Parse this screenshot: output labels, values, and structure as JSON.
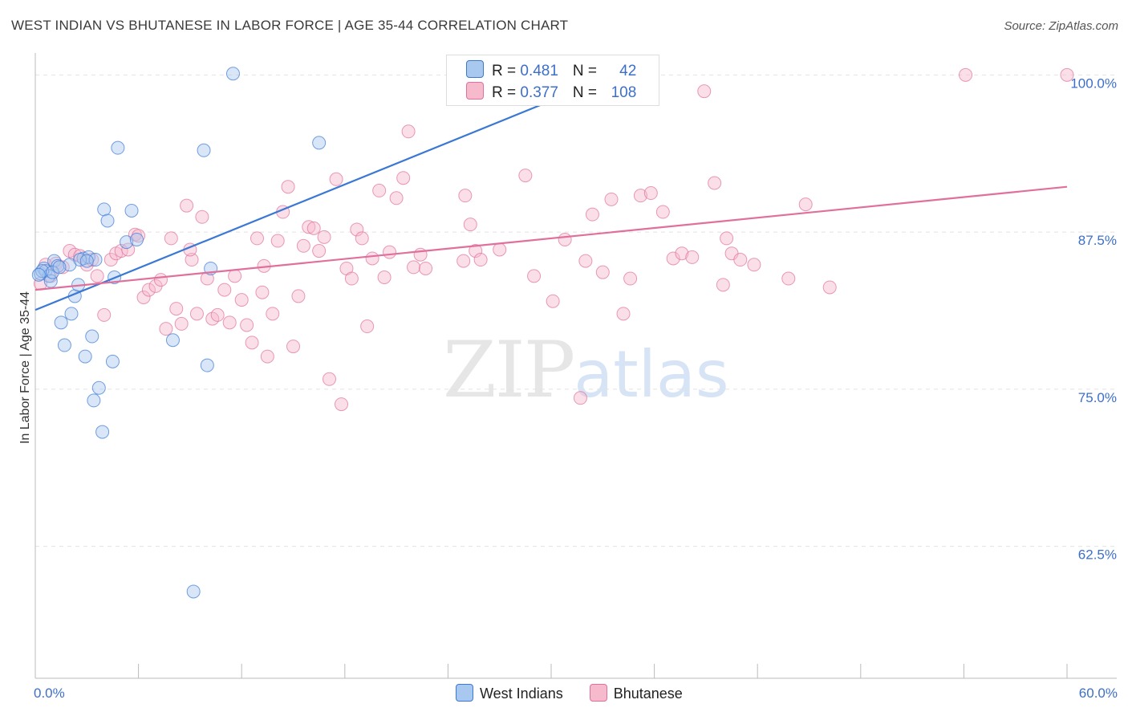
{
  "header": {
    "title": "WEST INDIAN VS BHUTANESE IN LABOR FORCE | AGE 35-44 CORRELATION CHART",
    "source": "Source: ZipAtlas.com"
  },
  "watermark": {
    "zip": "ZIP",
    "atlas": "atlas"
  },
  "legend": {
    "series1": {
      "r_label": "R = ",
      "r_value": "0.481",
      "n_label": "N = ",
      "n_value": "42"
    },
    "series2": {
      "r_label": "R = ",
      "r_value": "0.377",
      "n_label": "N = ",
      "n_value": "108"
    }
  },
  "colors": {
    "blue": "#3a78d4",
    "pink": "#e0709b",
    "blue_fill": "#a9c8f0",
    "pink_fill": "#f7b9cc",
    "tick": "#3d6fc9"
  },
  "chart_data": {
    "type": "scatter",
    "title": "WEST INDIAN VS BHUTANESE IN LABOR FORCE | AGE 35-44 CORRELATION CHART",
    "xlabel": "",
    "ylabel": "In Labor Force | Age 35-44",
    "xlim": [
      0,
      60
    ],
    "ylim": [
      52,
      102
    ],
    "x_tick_labels": [
      "0.0%",
      "60.0%"
    ],
    "y_ticks": [
      62.5,
      75.0,
      87.5,
      100.0
    ],
    "y_tick_labels": [
      "62.5%",
      "75.0%",
      "87.5%",
      "100.0%"
    ],
    "series": [
      {
        "name": "West Indians",
        "color": "#3a78d4",
        "trend": {
          "x": [
            0,
            33.7
          ],
          "y": [
            81.3,
            100.0
          ]
        },
        "points": [
          [
            0.3,
            84.2
          ],
          [
            0.5,
            84.6
          ],
          [
            0.6,
            84.4
          ],
          [
            0.8,
            84.0
          ],
          [
            0.9,
            83.6
          ],
          [
            1.1,
            85.2
          ],
          [
            1.3,
            84.8
          ],
          [
            1.5,
            80.3
          ],
          [
            1.7,
            78.5
          ],
          [
            2.0,
            84.9
          ],
          [
            2.1,
            81.0
          ],
          [
            2.3,
            82.4
          ],
          [
            2.5,
            83.3
          ],
          [
            2.8,
            85.4
          ],
          [
            2.9,
            77.6
          ],
          [
            3.1,
            85.5
          ],
          [
            3.3,
            79.2
          ],
          [
            3.4,
            74.1
          ],
          [
            3.5,
            85.3
          ],
          [
            3.7,
            75.1
          ],
          [
            3.9,
            71.6
          ],
          [
            4.0,
            89.3
          ],
          [
            4.2,
            88.4
          ],
          [
            4.5,
            77.2
          ],
          [
            4.6,
            83.9
          ],
          [
            4.8,
            94.2
          ],
          [
            5.3,
            86.7
          ],
          [
            5.6,
            89.2
          ],
          [
            5.9,
            86.9
          ],
          [
            8.0,
            78.9
          ],
          [
            9.2,
            58.9
          ],
          [
            9.8,
            94.0
          ],
          [
            10.0,
            76.9
          ],
          [
            10.2,
            84.6
          ],
          [
            11.5,
            100.1
          ],
          [
            16.5,
            94.6
          ],
          [
            0.4,
            84.4
          ],
          [
            1.0,
            84.3
          ],
          [
            2.6,
            85.3
          ],
          [
            3.0,
            85.2
          ],
          [
            0.2,
            84.1
          ],
          [
            1.4,
            84.7
          ]
        ]
      },
      {
        "name": "Bhutanese",
        "color": "#e0709b",
        "trend": {
          "x": [
            0,
            60
          ],
          "y": [
            82.9,
            91.1
          ]
        },
        "points": [
          [
            0.3,
            83.4
          ],
          [
            0.6,
            84.9
          ],
          [
            0.9,
            84.0
          ],
          [
            1.2,
            85.0
          ],
          [
            1.6,
            84.7
          ],
          [
            2.0,
            86.0
          ],
          [
            2.3,
            85.7
          ],
          [
            2.6,
            85.6
          ],
          [
            3.0,
            84.9
          ],
          [
            3.3,
            85.3
          ],
          [
            3.6,
            84.0
          ],
          [
            4.0,
            80.9
          ],
          [
            4.4,
            85.3
          ],
          [
            4.7,
            85.8
          ],
          [
            5.0,
            86.0
          ],
          [
            5.4,
            86.1
          ],
          [
            5.8,
            87.3
          ],
          [
            6.0,
            87.2
          ],
          [
            6.3,
            82.3
          ],
          [
            6.6,
            82.9
          ],
          [
            7.0,
            83.2
          ],
          [
            7.3,
            83.7
          ],
          [
            7.6,
            79.8
          ],
          [
            7.9,
            87.0
          ],
          [
            8.2,
            81.4
          ],
          [
            8.5,
            80.2
          ],
          [
            8.8,
            89.6
          ],
          [
            9.1,
            85.3
          ],
          [
            9.4,
            81.0
          ],
          [
            9.7,
            88.7
          ],
          [
            10.0,
            83.8
          ],
          [
            10.3,
            80.6
          ],
          [
            10.6,
            80.9
          ],
          [
            11.0,
            82.9
          ],
          [
            11.3,
            80.3
          ],
          [
            11.6,
            84.0
          ],
          [
            12.0,
            82.1
          ],
          [
            12.3,
            80.1
          ],
          [
            12.6,
            78.7
          ],
          [
            12.9,
            87.0
          ],
          [
            13.2,
            82.7
          ],
          [
            13.5,
            77.6
          ],
          [
            13.8,
            81.0
          ],
          [
            14.1,
            86.8
          ],
          [
            14.4,
            89.1
          ],
          [
            14.7,
            91.1
          ],
          [
            15.0,
            78.4
          ],
          [
            15.3,
            82.4
          ],
          [
            15.6,
            86.4
          ],
          [
            15.9,
            87.9
          ],
          [
            16.2,
            87.8
          ],
          [
            16.5,
            86.0
          ],
          [
            16.8,
            87.1
          ],
          [
            17.1,
            75.8
          ],
          [
            17.5,
            91.7
          ],
          [
            17.8,
            73.8
          ],
          [
            18.1,
            84.6
          ],
          [
            18.4,
            83.8
          ],
          [
            18.7,
            87.7
          ],
          [
            19.0,
            87.0
          ],
          [
            19.3,
            80.0
          ],
          [
            19.6,
            85.4
          ],
          [
            20.0,
            90.8
          ],
          [
            20.3,
            83.9
          ],
          [
            20.6,
            85.9
          ],
          [
            21.0,
            90.2
          ],
          [
            21.4,
            91.8
          ],
          [
            21.7,
            95.5
          ],
          [
            22.0,
            84.7
          ],
          [
            22.4,
            85.7
          ],
          [
            22.7,
            84.6
          ],
          [
            25.0,
            90.4
          ],
          [
            25.3,
            88.1
          ],
          [
            25.6,
            86.0
          ],
          [
            25.9,
            85.3
          ],
          [
            28.5,
            92.0
          ],
          [
            29.0,
            84.0
          ],
          [
            30.1,
            82.0
          ],
          [
            30.8,
            86.9
          ],
          [
            31.7,
            74.3
          ],
          [
            32.0,
            85.2
          ],
          [
            32.4,
            88.9
          ],
          [
            33.0,
            84.3
          ],
          [
            33.5,
            90.1
          ],
          [
            34.2,
            81.0
          ],
          [
            34.6,
            83.8
          ],
          [
            35.2,
            90.4
          ],
          [
            35.8,
            90.6
          ],
          [
            36.5,
            89.1
          ],
          [
            37.1,
            85.4
          ],
          [
            37.6,
            85.8
          ],
          [
            38.2,
            85.5
          ],
          [
            38.9,
            98.7
          ],
          [
            39.5,
            91.4
          ],
          [
            40.0,
            83.3
          ],
          [
            40.5,
            85.8
          ],
          [
            41.0,
            85.3
          ],
          [
            41.8,
            84.9
          ],
          [
            43.8,
            83.8
          ],
          [
            44.8,
            89.7
          ],
          [
            46.2,
            83.1
          ],
          [
            54.1,
            100.0
          ],
          [
            60.0,
            100.0
          ],
          [
            24.9,
            85.2
          ],
          [
            27.0,
            86.1
          ],
          [
            13.3,
            84.8
          ],
          [
            9.0,
            86.1
          ],
          [
            40.2,
            87.0
          ]
        ]
      }
    ]
  },
  "bottom_legend": {
    "series1": "West Indians",
    "series2": "Bhutanese"
  }
}
